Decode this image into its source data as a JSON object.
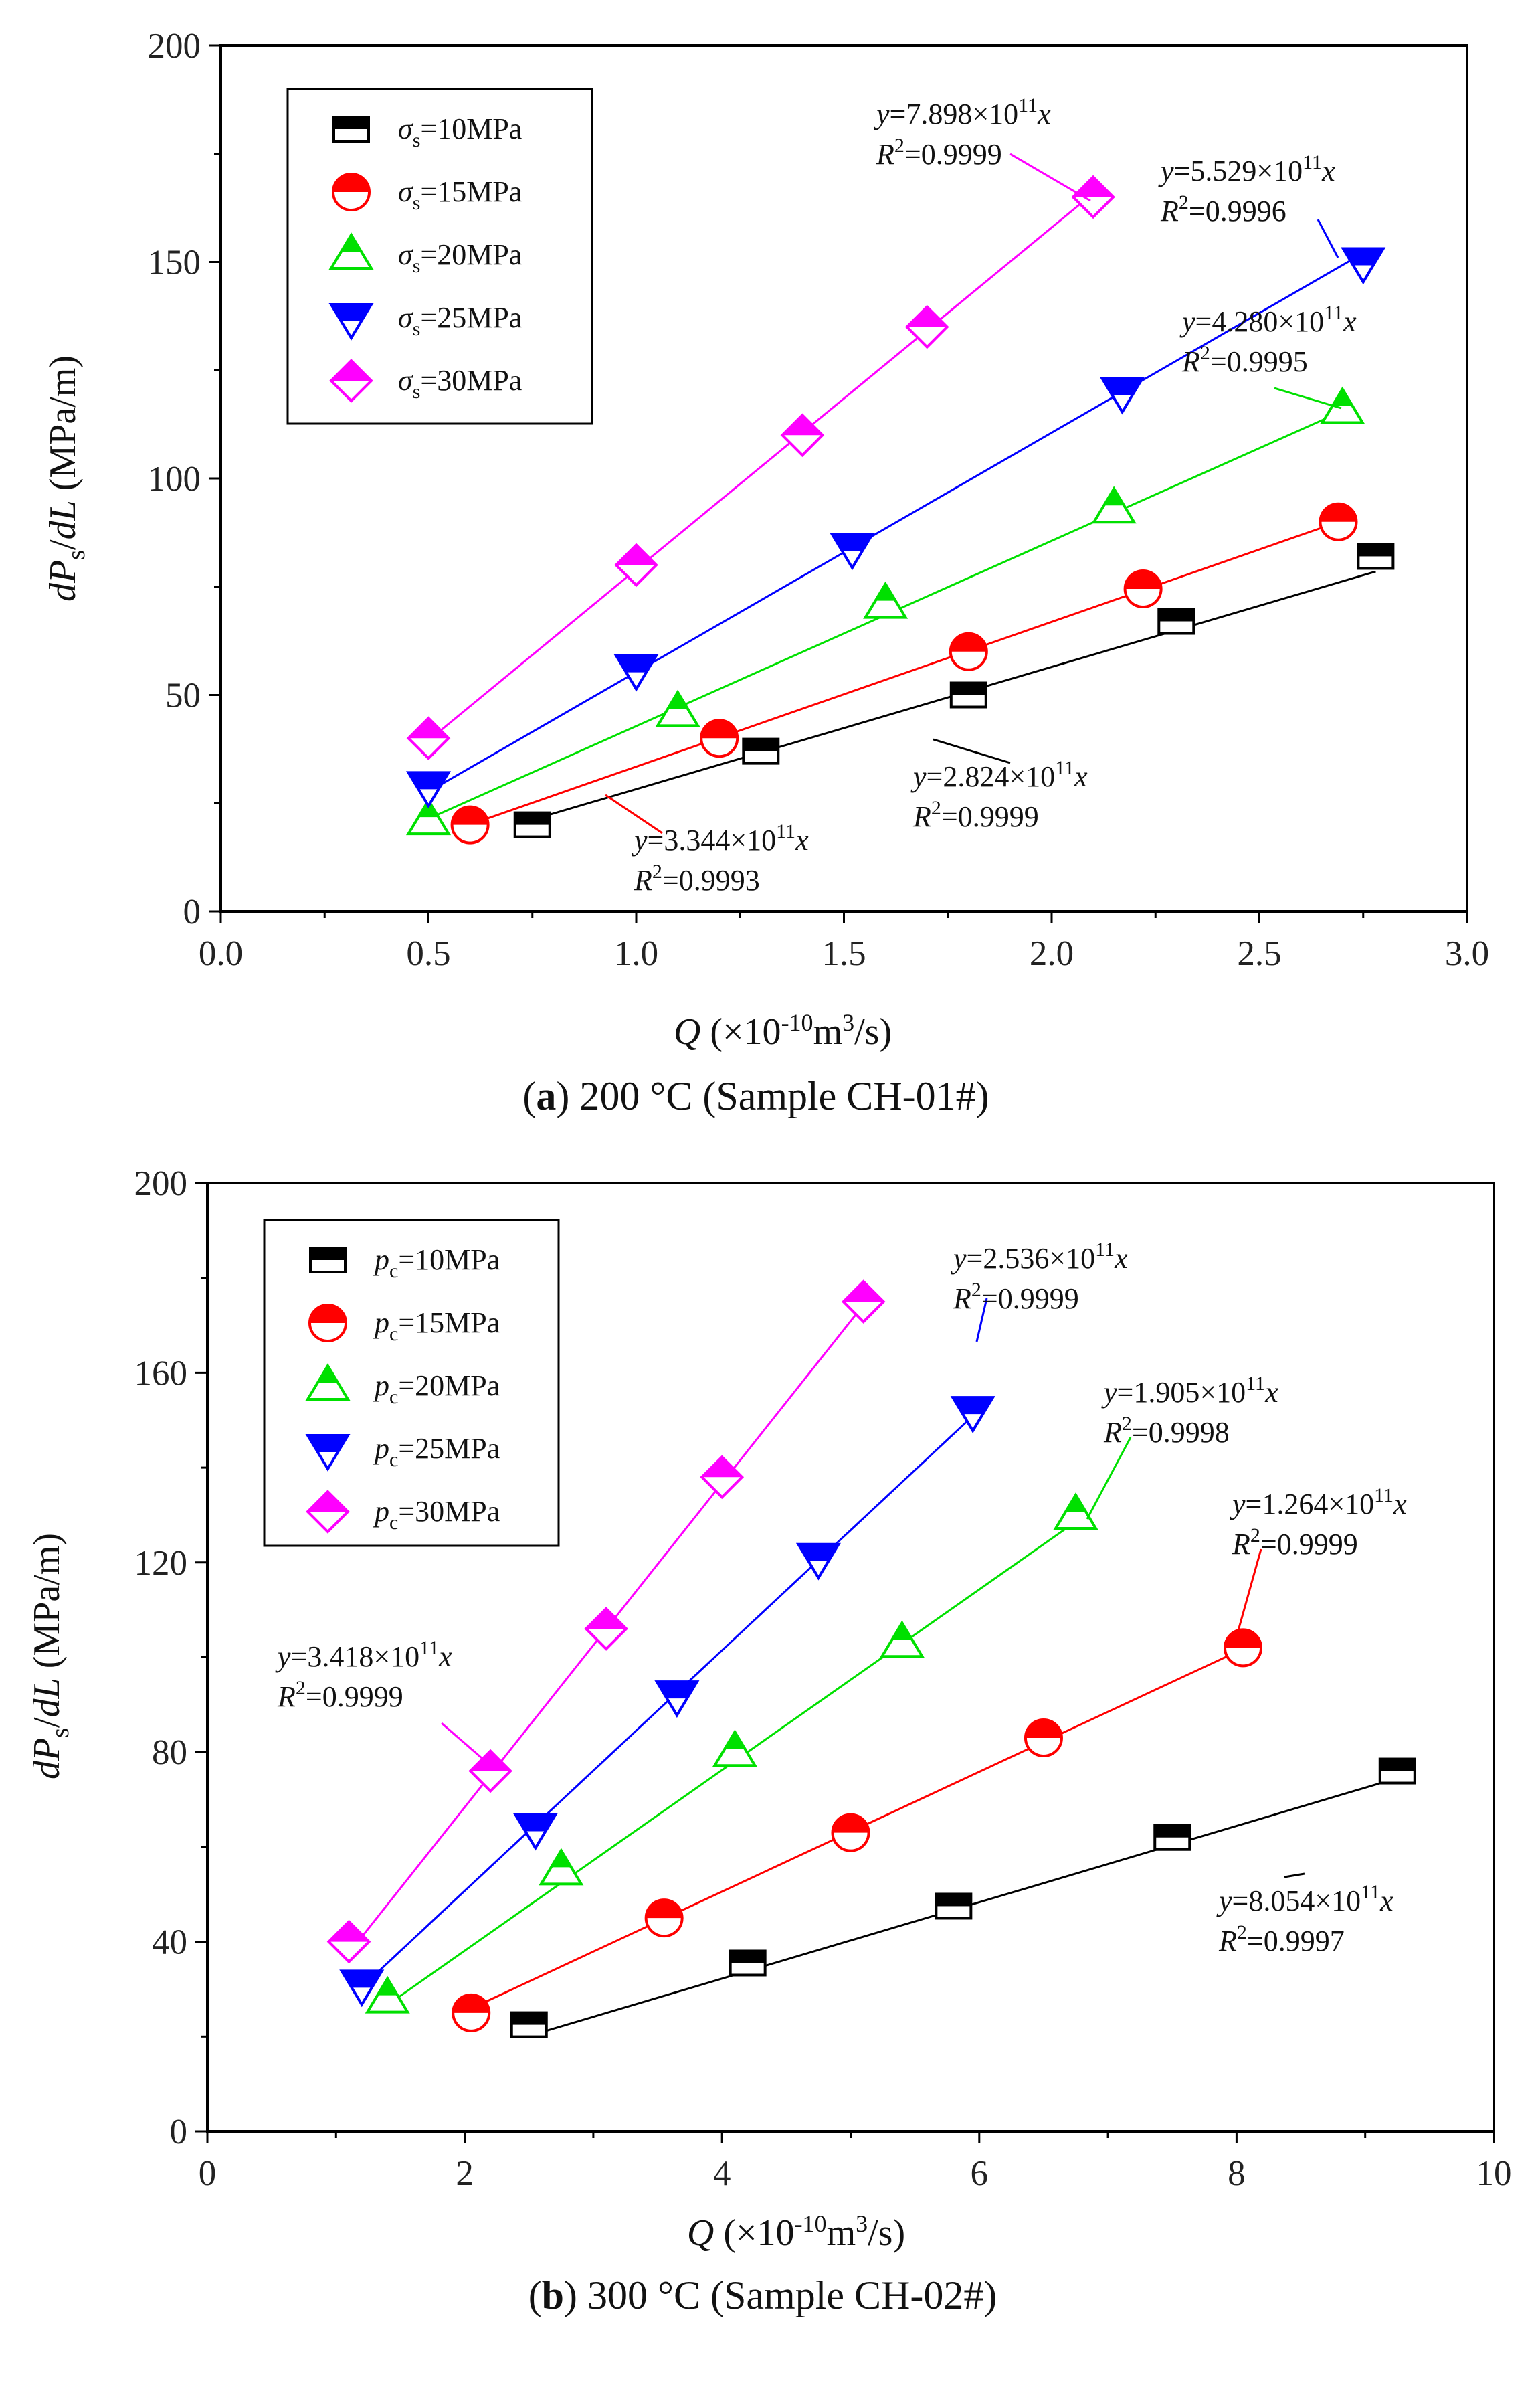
{
  "chart_data": [
    {
      "type": "scatter",
      "caption_bold": "a",
      "caption_rest": " 200 °C (Sample CH-01#)",
      "ylabel_main": "dP",
      "ylabel_sub": "s",
      "ylabel_mid": "/dL",
      "ylabel_unit": " (MPa/m)",
      "xlabel_main": "Q",
      "xlabel_pre": "(×10",
      "xlabel_exp": "-10",
      "xlabel_mid": "m",
      "xlabel_exp2": "3",
      "xlabel_post": "/s)",
      "xlim": [
        0,
        3
      ],
      "ylim": [
        0,
        200
      ],
      "xticks": [
        "0.0",
        "0.5",
        "1.0",
        "1.5",
        "2.0",
        "2.5",
        "3.0"
      ],
      "yticks": [
        "0",
        "50",
        "100",
        "150",
        "200"
      ],
      "legend_var": "σ",
      "legend_sub": "s",
      "series": [
        {
          "name": "=10MPa",
          "color": "#000000",
          "marker": "square",
          "slope": 28.24,
          "x": [
            0.75,
            1.3,
            1.8,
            2.3,
            2.78
          ],
          "y": [
            20,
            37,
            50,
            67,
            82
          ],
          "fit_range": [
            0.75,
            2.78
          ],
          "eq_pre": "y=2.824×10",
          "eq_exp": "11",
          "eq_post": "x",
          "r2_pre": "R",
          "r2_exp": "2",
          "r2_val": "=0.9999"
        },
        {
          "name": "=15MPa",
          "color": "#ff0000",
          "marker": "circle",
          "slope": 33.44,
          "x": [
            0.6,
            1.2,
            1.8,
            2.22,
            2.69
          ],
          "y": [
            20,
            40,
            60,
            74.5,
            90
          ],
          "fit_range": [
            0.6,
            2.69
          ],
          "eq_pre": "y=3.344×10",
          "eq_exp": "11",
          "eq_post": "x",
          "r2_pre": "R",
          "r2_exp": "2",
          "r2_val": "=0.9993"
        },
        {
          "name": "=20MPa",
          "color": "#00e000",
          "marker": "triangle-up",
          "slope": 42.8,
          "x": [
            0.5,
            1.1,
            1.6,
            2.15,
            2.7
          ],
          "y": [
            21,
            46,
            71,
            93,
            116
          ],
          "fit_range": [
            0.5,
            2.7
          ],
          "eq_pre": "y=4.280×10",
          "eq_exp": "11",
          "eq_post": "x",
          "r2_pre": "R",
          "r2_exp": "2",
          "r2_val": "=0.9995"
        },
        {
          "name": "=25MPa",
          "color": "#0000ff",
          "marker": "triangle-down",
          "slope": 55.29,
          "x": [
            0.5,
            1.0,
            1.52,
            2.17,
            2.75
          ],
          "y": [
            29,
            56,
            84,
            120,
            150
          ],
          "fit_range": [
            0.5,
            2.75
          ],
          "eq_pre": "y=5.529×10",
          "eq_exp": "11",
          "eq_post": "x",
          "r2_pre": "R",
          "r2_exp": "2",
          "r2_val": "=0.9996"
        },
        {
          "name": "=30MPa",
          "color": "#ff00ff",
          "marker": "diamond",
          "slope": 78.98,
          "x": [
            0.5,
            1.0,
            1.4,
            1.7,
            2.1
          ],
          "y": [
            40,
            80,
            110,
            135,
            165
          ],
          "fit_range": [
            0.5,
            2.1
          ],
          "eq_pre": "y=7.898×10",
          "eq_exp": "11",
          "eq_post": "x",
          "r2_pre": "R",
          "r2_exp": "2",
          "r2_val": "=0.9999"
        }
      ]
    },
    {
      "type": "scatter",
      "caption_bold": "b",
      "caption_rest": " 300 °C (Sample CH-02#)",
      "ylabel_main": "dP",
      "ylabel_sub": "s",
      "ylabel_mid": "/dL",
      "ylabel_unit": " (MPa/m)",
      "xlabel_main": "Q",
      "xlabel_pre": "(×10",
      "xlabel_exp": "-10",
      "xlabel_mid": "m",
      "xlabel_exp2": "3",
      "xlabel_post": "/s)",
      "xlim": [
        0,
        10
      ],
      "ylim": [
        0,
        200
      ],
      "xticks": [
        "0",
        "2",
        "4",
        "6",
        "8",
        "10"
      ],
      "yticks": [
        "0",
        "40",
        "80",
        "120",
        "160",
        "200"
      ],
      "legend_var": "p",
      "legend_sub": "c",
      "series": [
        {
          "name": "=10MPa",
          "color": "#000000",
          "marker": "square",
          "slope": 8.054,
          "x": [
            2.5,
            4.2,
            5.8,
            7.5,
            9.25
          ],
          "y": [
            22.5,
            35.5,
            47.5,
            62,
            76
          ],
          "fit_range": [
            2.55,
            9.25
          ],
          "eq_pre": "y=8.054×10",
          "eq_exp": "11",
          "eq_post": "x",
          "r2_pre": "R",
          "r2_exp": "2",
          "r2_val": "=0.9997"
        },
        {
          "name": "=15MPa",
          "color": "#ff0000",
          "marker": "circle",
          "slope": 12.64,
          "x": [
            2.05,
            3.55,
            5.0,
            6.5,
            8.05
          ],
          "y": [
            25,
            45,
            63,
            83,
            102
          ],
          "fit_range": [
            2.05,
            8.05
          ],
          "eq_pre": "y=1.264×10",
          "eq_exp": "11",
          "eq_post": "x",
          "r2_pre": "R",
          "r2_exp": "2",
          "r2_val": "=0.9999"
        },
        {
          "name": "=20MPa",
          "color": "#00e000",
          "marker": "triangle-up",
          "slope": 19.05,
          "x": [
            1.4,
            2.75,
            4.1,
            5.4,
            6.75
          ],
          "y": [
            28,
            55,
            80,
            103,
            130
          ],
          "fit_range": [
            1.4,
            6.75
          ],
          "eq_pre": "y=1.905×10",
          "eq_exp": "11",
          "eq_post": "x",
          "r2_pre": "R",
          "r2_exp": "2",
          "r2_val": "=0.9998"
        },
        {
          "name": "=25MPa",
          "color": "#0000ff",
          "marker": "triangle-down",
          "slope": 25.36,
          "x": [
            1.2,
            2.55,
            3.65,
            4.75,
            5.95
          ],
          "y": [
            31,
            64,
            92,
            121,
            152
          ],
          "fit_range": [
            1.2,
            5.95
          ],
          "eq_pre": "y=2.536×10",
          "eq_exp": "11",
          "eq_post": "x",
          "r2_pre": "R",
          "r2_exp": "2",
          "r2_val": "=0.9999"
        },
        {
          "name": "=30MPa",
          "color": "#ff00ff",
          "marker": "diamond",
          "slope": 34.18,
          "x": [
            1.1,
            2.2,
            3.1,
            4.0,
            5.1
          ],
          "y": [
            40,
            76,
            106,
            138,
            175
          ],
          "fit_range": [
            1.1,
            5.1
          ],
          "eq_pre": "y=3.418×10",
          "eq_exp": "11",
          "eq_post": "x",
          "r2_pre": "R",
          "r2_exp": "2",
          "r2_val": "=0.9999"
        }
      ]
    }
  ]
}
